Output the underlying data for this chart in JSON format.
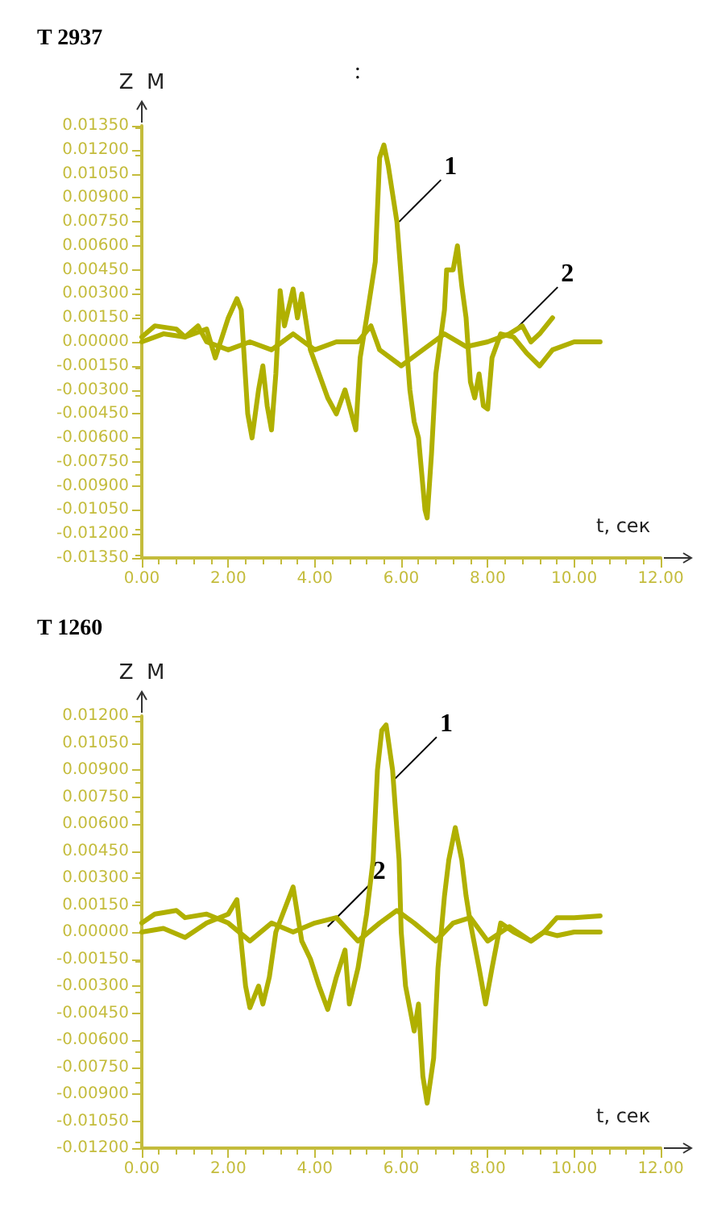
{
  "chart_data": [
    {
      "type": "line",
      "title": "T 2937",
      "ylabel": "Z  M",
      "xlabel": "t, сек",
      "grid": false,
      "xlim": [
        0,
        12
      ],
      "ylim": [
        -0.0135,
        0.0135
      ],
      "xticks": [
        {
          "value": 0,
          "label": "0.00"
        },
        {
          "value": 2,
          "label": "2.00"
        },
        {
          "value": 4,
          "label": "4.00"
        },
        {
          "value": 6,
          "label": "6.00"
        },
        {
          "value": 8,
          "label": "8.00"
        },
        {
          "value": 10,
          "label": "10.00"
        },
        {
          "value": 12,
          "label": "12.00"
        }
      ],
      "yticks": [
        {
          "value": -0.0135,
          "label": "-0.01350"
        },
        {
          "value": -0.012,
          "label": "-0.01200"
        },
        {
          "value": -0.0105,
          "label": "-0.01050"
        },
        {
          "value": -0.009,
          "label": "-0.00900"
        },
        {
          "value": -0.0075,
          "label": "-0.00750"
        },
        {
          "value": -0.006,
          "label": "-0.00600"
        },
        {
          "value": -0.0045,
          "label": "-0.00450"
        },
        {
          "value": -0.003,
          "label": "-0.00300"
        },
        {
          "value": -0.0015,
          "label": "-0.00150"
        },
        {
          "value": 0,
          "label": "0.00000"
        },
        {
          "value": 0.0015,
          "label": "0.00150"
        },
        {
          "value": 0.003,
          "label": "0.00300"
        },
        {
          "value": 0.0045,
          "label": "0.00450"
        },
        {
          "value": 0.006,
          "label": "0.00600"
        },
        {
          "value": 0.0075,
          "label": "0.00750"
        },
        {
          "value": 0.009,
          "label": "0.00900"
        },
        {
          "value": 0.0105,
          "label": "0.01050"
        },
        {
          "value": 0.012,
          "label": "0.01200"
        },
        {
          "value": 0.0135,
          "label": "0.01350"
        }
      ],
      "series": [
        {
          "color": "#b0b000",
          "x": [
            0,
            0.5,
            1.0,
            1.5,
            1.7,
            2.0,
            2.2,
            2.3,
            2.45,
            2.55,
            2.7,
            2.8,
            2.9,
            3.0,
            3.1,
            3.2,
            3.3,
            3.5,
            3.6,
            3.7,
            3.9,
            4.1,
            4.3,
            4.5,
            4.7,
            4.8,
            4.95,
            5.05,
            5.2,
            5.4,
            5.5,
            5.6,
            5.7,
            5.9,
            6.0,
            6.1,
            6.2,
            6.3,
            6.4,
            6.55,
            6.6,
            6.7,
            6.8,
            7.0,
            7.05,
            7.2,
            7.3,
            7.4,
            7.5,
            7.6,
            7.7,
            7.8,
            7.9,
            8.0,
            8.1,
            8.3,
            8.6,
            8.9,
            9.2,
            9.5,
            10.0,
            10.3,
            10.6
          ],
          "values": [
            0,
            0.0005,
            0.0003,
            0.0008,
            -0.001,
            0.0015,
            0.0027,
            0.002,
            -0.0045,
            -0.006,
            -0.003,
            -0.0015,
            -0.004,
            -0.0055,
            -0.002,
            0.0032,
            0.001,
            0.0033,
            0.0015,
            0.003,
            -0.0005,
            -0.002,
            -0.0035,
            -0.0045,
            -0.003,
            -0.004,
            -0.0055,
            -0.001,
            0.0015,
            0.005,
            0.0115,
            0.0123,
            0.011,
            0.0075,
            0.004,
            0.0005,
            -0.003,
            -0.005,
            -0.006,
            -0.0105,
            -0.011,
            -0.007,
            -0.002,
            0.002,
            0.0045,
            0.0045,
            0.006,
            0.0035,
            0.0015,
            -0.0025,
            -0.0035,
            -0.002,
            -0.004,
            -0.0042,
            -0.001,
            0.0005,
            0.0003,
            -0.0007,
            -0.0015,
            -0.0005,
            0,
            0,
            0
          ]
        },
        {
          "color": "#b0b000",
          "x": [
            0,
            0.3,
            0.8,
            1.0,
            1.3,
            1.5,
            2.0,
            2.5,
            3.0,
            3.5,
            4.0,
            4.5,
            5.0,
            5.3,
            5.5,
            6.0,
            6.5,
            7.0,
            7.5,
            8.0,
            8.5,
            8.8,
            9.0,
            9.2,
            9.5
          ],
          "values": [
            0.0003,
            0.001,
            0.0008,
            0.0003,
            0.001,
            0,
            -0.0005,
            0,
            -0.0005,
            0.0005,
            -0.0005,
            0,
            0,
            0.001,
            -0.0005,
            -0.0015,
            -0.0005,
            0.0005,
            -0.0003,
            0,
            0.0005,
            0.001,
            0,
            0.0005,
            0.0015
          ]
        }
      ],
      "annotations": [
        ":",
        {
          "text": "1",
          "x": 5.95,
          "y": 0.0075
        },
        {
          "text": "2",
          "x": 8.65,
          "y": 0.0008
        }
      ]
    },
    {
      "type": "line",
      "title": "T 1260",
      "ylabel": "Z  M",
      "xlabel": "t, сек",
      "grid": false,
      "xlim": [
        0,
        12
      ],
      "ylim": [
        -0.012,
        0.012
      ],
      "xticks": [
        {
          "value": 0,
          "label": "0.00"
        },
        {
          "value": 2,
          "label": "2.00"
        },
        {
          "value": 4,
          "label": "4.00"
        },
        {
          "value": 6,
          "label": "6.00"
        },
        {
          "value": 8,
          "label": "8.00"
        },
        {
          "value": 10,
          "label": "10.00"
        },
        {
          "value": 12,
          "label": "12.00"
        }
      ],
      "yticks": [
        {
          "value": -0.012,
          "label": "-0.01200"
        },
        {
          "value": -0.0105,
          "label": "-0.01050"
        },
        {
          "value": -0.009,
          "label": "-0.00900"
        },
        {
          "value": -0.0075,
          "label": "-0.00750"
        },
        {
          "value": -0.006,
          "label": "-0.00600"
        },
        {
          "value": -0.0045,
          "label": "-0.00450"
        },
        {
          "value": -0.003,
          "label": "-0.00300"
        },
        {
          "value": -0.0015,
          "label": "-0.00150"
        },
        {
          "value": 0,
          "label": "0.00000"
        },
        {
          "value": 0.0015,
          "label": "0.00150"
        },
        {
          "value": 0.003,
          "label": "0.00300"
        },
        {
          "value": 0.0045,
          "label": "0.00450"
        },
        {
          "value": 0.006,
          "label": "0.00600"
        },
        {
          "value": 0.0075,
          "label": "0.00750"
        },
        {
          "value": 0.009,
          "label": "0.00900"
        },
        {
          "value": 0.0105,
          "label": "0.01050"
        },
        {
          "value": 0.012,
          "label": "0.01200"
        }
      ],
      "series": [
        {
          "color": "#b0b000",
          "x": [
            0,
            0.5,
            1.0,
            1.5,
            2.0,
            2.2,
            2.4,
            2.5,
            2.7,
            2.8,
            2.95,
            3.1,
            3.5,
            3.7,
            3.9,
            4.1,
            4.3,
            4.5,
            4.7,
            4.8,
            5.0,
            5.2,
            5.35,
            5.45,
            5.55,
            5.65,
            5.8,
            5.95,
            6.0,
            6.1,
            6.3,
            6.4,
            6.5,
            6.6,
            6.75,
            6.85,
            7.0,
            7.1,
            7.25,
            7.4,
            7.5,
            7.6,
            7.8,
            7.95,
            8.1,
            8.3,
            8.6,
            9.0,
            9.3,
            9.6,
            10.0,
            10.6
          ],
          "values": [
            0,
            0.0002,
            -0.0003,
            0.0005,
            0.001,
            0.0018,
            -0.003,
            -0.0042,
            -0.003,
            -0.004,
            -0.0025,
            0,
            0.0025,
            -0.0005,
            -0.0015,
            -0.003,
            -0.0043,
            -0.0025,
            -0.001,
            -0.004,
            -0.002,
            0.001,
            0.004,
            0.009,
            0.0112,
            0.0115,
            0.009,
            0.004,
            0,
            -0.003,
            -0.0055,
            -0.004,
            -0.008,
            -0.0095,
            -0.007,
            -0.002,
            0.002,
            0.004,
            0.0058,
            0.004,
            0.002,
            0.0005,
            -0.002,
            -0.004,
            -0.002,
            0.0005,
            0,
            -0.0005,
            0,
            0.0008,
            0.0008,
            0.0009
          ]
        },
        {
          "color": "#b0b000",
          "x": [
            0,
            0.3,
            0.8,
            1.0,
            1.5,
            2.0,
            2.5,
            3.0,
            3.5,
            4.0,
            4.5,
            5.0,
            5.5,
            5.9,
            6.3,
            6.8,
            7.2,
            7.6,
            8.0,
            8.5,
            9.0,
            9.3,
            9.6,
            10.0,
            10.6
          ],
          "values": [
            0.0005,
            0.001,
            0.0012,
            0.0008,
            0.001,
            0.0005,
            -0.0005,
            0.0005,
            0,
            0.0005,
            0.0008,
            -0.0005,
            0.0005,
            0.0012,
            0.0005,
            -0.0005,
            0.0005,
            0.0008,
            -0.0005,
            0.0003,
            -0.0005,
            0,
            -0.0002,
            0,
            0
          ]
        }
      ],
      "annotations": [
        {
          "text": "1",
          "x": 5.85,
          "y": 0.0085
        },
        {
          "text": "2",
          "x": 4.3,
          "y": 0.0003
        }
      ]
    }
  ]
}
